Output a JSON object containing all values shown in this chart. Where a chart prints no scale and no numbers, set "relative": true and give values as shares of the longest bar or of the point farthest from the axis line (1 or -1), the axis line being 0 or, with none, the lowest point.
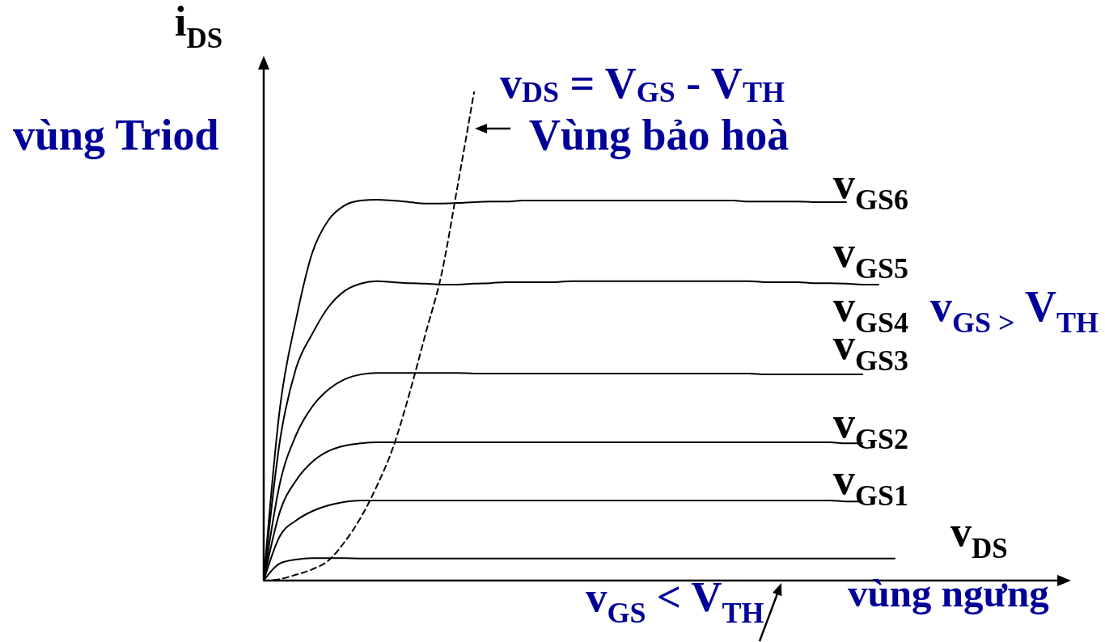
{
  "chart_data": {
    "type": "line",
    "relative": true,
    "ylabel": "i$_{DS}$",
    "xlabel": "v$_{DS}$",
    "categories": [
      null,
      null,
      null,
      null,
      null,
      null,
      null,
      null,
      null,
      null,
      null,
      null,
      null,
      null,
      null,
      null,
      null,
      null,
      null,
      null,
      null,
      null,
      null,
      null,
      null,
      null,
      null,
      null,
      null,
      null,
      null,
      null,
      null,
      null,
      null,
      null,
      null,
      null,
      null,
      null,
      null,
      null,
      null,
      null,
      null,
      null,
      null,
      null,
      null,
      null
    ],
    "series": [
      {
        "name": "v$_{GS1}$",
        "color": "#000000",
        "values": [
          0,
          0.091,
          0.123,
          0.142,
          0.154,
          0.161,
          0.164,
          0.164,
          0.164,
          0.164,
          0.164,
          0.164,
          0.164,
          0.164,
          0.164,
          0.164,
          0.164,
          0.164,
          0.164,
          0.164,
          0.164,
          0.164,
          0.164,
          0.164,
          0.164,
          0.164,
          0.164,
          0.164,
          0.164,
          0.164,
          0.164,
          0.164,
          0.164,
          0.164,
          0.164,
          0.164,
          0.162,
          0.162,
          null,
          null,
          null,
          null,
          null,
          null,
          null,
          null,
          null,
          null,
          null,
          null
        ]
      },
      {
        "name": "v$_{GS2}$",
        "color": "#000000",
        "values": [
          0,
          0.141,
          0.205,
          0.243,
          0.265,
          0.276,
          0.281,
          0.283,
          0.283,
          0.283,
          0.283,
          0.283,
          0.283,
          0.283,
          0.283,
          0.283,
          0.283,
          0.283,
          0.283,
          0.283,
          0.283,
          0.283,
          0.283,
          0.283,
          0.283,
          0.283,
          0.283,
          0.283,
          0.283,
          0.283,
          0.283,
          0.283,
          0.283,
          0.283,
          0.283,
          0.283,
          0.281,
          0.281,
          null,
          null,
          null,
          null,
          null,
          null,
          null,
          null,
          null,
          null,
          null,
          null
        ]
      },
      {
        "name": "v$_{GS3}$",
        "color": "#000000",
        "values": [
          0,
          0.199,
          0.298,
          0.356,
          0.391,
          0.412,
          0.422,
          0.425,
          0.425,
          0.425,
          0.425,
          0.425,
          0.425,
          0.424,
          0.424,
          0.424,
          0.424,
          0.424,
          0.424,
          0.424,
          0.424,
          0.424,
          0.424,
          0.424,
          0.424,
          0.424,
          0.424,
          0.424,
          0.424,
          0.424,
          0.424,
          0.422,
          0.422,
          0.422,
          0.422,
          0.422,
          0.422,
          0.422,
          null,
          null,
          null,
          null,
          null,
          null,
          null,
          null,
          null,
          null,
          null,
          null
        ]
      },
      {
        "name": "v$_{GS5}$",
        "color": "#000000",
        "values": [
          0,
          0.286,
          0.435,
          0.505,
          0.56,
          0.593,
          0.608,
          0.613,
          0.611,
          0.609,
          0.608,
          0.606,
          0.606,
          0.608,
          0.609,
          0.611,
          0.611,
          0.611,
          0.611,
          0.613,
          0.613,
          0.613,
          0.613,
          0.613,
          0.613,
          0.613,
          0.613,
          0.613,
          0.613,
          0.613,
          0.613,
          0.611,
          0.611,
          0.611,
          0.609,
          0.609,
          0.608,
          0.606,
          0.606,
          null,
          null,
          null,
          null,
          null,
          null,
          null,
          null,
          null,
          null,
          null
        ]
      },
      {
        "name": "v$_{GS6}$",
        "color": "#000000",
        "values": [
          0,
          0.353,
          0.535,
          0.671,
          0.738,
          0.768,
          0.778,
          0.78,
          0.778,
          0.775,
          0.772,
          0.772,
          0.773,
          0.775,
          0.776,
          0.776,
          0.778,
          0.778,
          0.778,
          0.778,
          0.778,
          0.778,
          0.778,
          0.778,
          0.778,
          0.778,
          0.778,
          0.778,
          0.778,
          0.778,
          0.776,
          0.776,
          0.776,
          0.776,
          0.775,
          0.775,
          0.775,
          null,
          null,
          null,
          null,
          null,
          null,
          null,
          null,
          null,
          null,
          null,
          null,
          null
        ]
      },
      {
        "color": "#000000",
        "values": [
          0,
          0.035,
          0.043,
          0.046,
          0.046,
          0.046,
          0.045,
          0.045,
          0.045,
          0.045,
          0.045,
          0.045,
          0.045,
          0.045,
          0.045,
          0.045,
          0.045,
          0.045,
          0.045,
          0.045,
          0.045,
          0.045,
          0.045,
          0.045,
          0.045,
          0.045,
          0.045,
          0.045,
          0.045,
          0.045,
          0.045,
          0.045,
          0.045,
          0.045,
          0.045,
          0.045,
          0.045,
          0.045,
          0.045,
          0.045,
          null,
          null,
          null,
          null,
          null,
          null,
          null,
          null,
          null,
          null
        ]
      },
      {
        "name": "v$_{DS}$ = V$_{GS}$ - V$_{TH}$",
        "color": "#000000",
        "line_style": "dashed",
        "values": [
          0,
          0.003,
          0.012,
          0.023,
          0.041,
          0.079,
          0.129,
          0.194,
          0.273,
          0.382,
          0.505,
          0.629,
          0.811,
          1,
          null,
          null,
          null,
          null,
          null,
          null,
          null,
          null,
          null,
          null,
          null,
          null,
          null,
          null,
          null,
          null,
          null,
          null,
          null,
          null,
          null,
          null,
          null,
          null,
          null,
          null,
          null,
          null,
          null,
          null,
          null,
          null,
          null,
          null,
          null,
          null
        ]
      }
    ],
    "annotations": [
      "vùng Triod",
      "Vùng bảo hoà",
      "v$_{GS4}$",
      "v$_{GS >}$ V$_{TH}$",
      "v$_{GS}$ < V$_{TH}$",
      "vùng ngưng"
    ]
  }
}
